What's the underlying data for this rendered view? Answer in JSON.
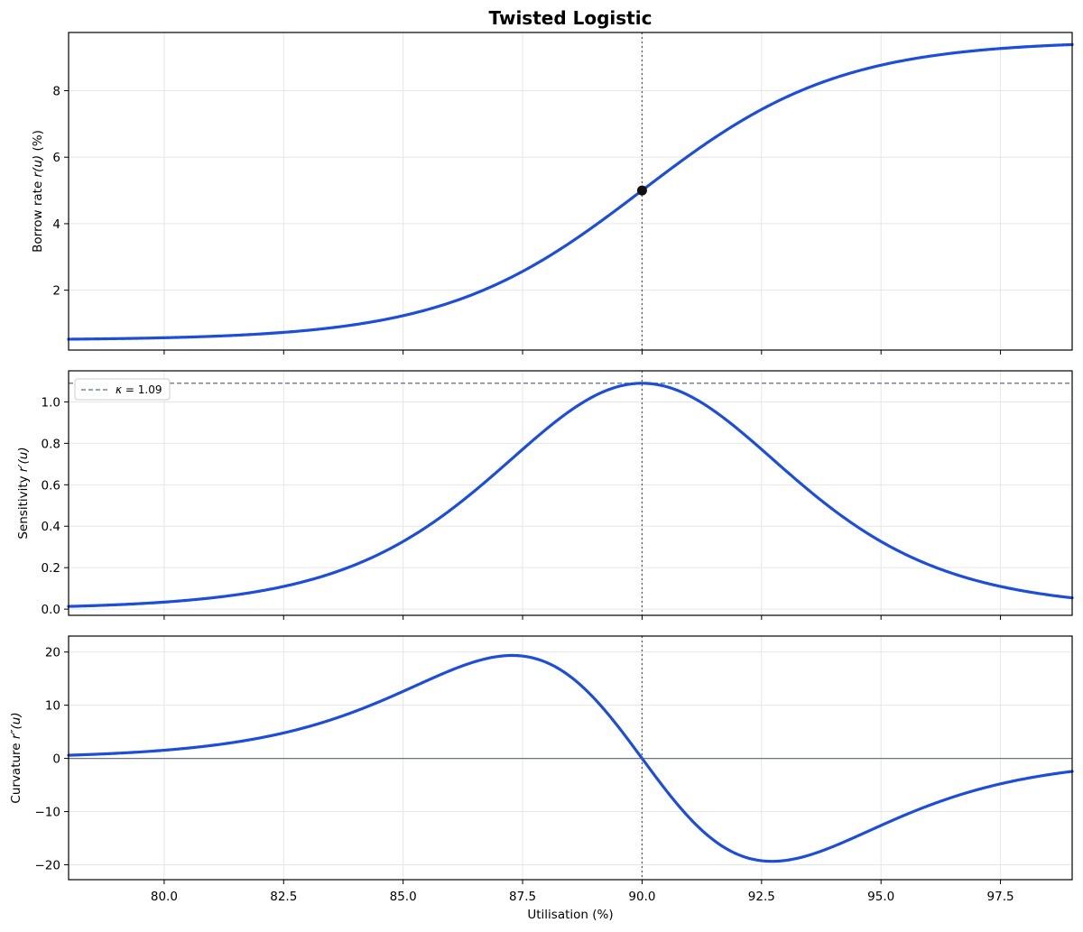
{
  "title": "Twisted Logistic",
  "chart_data": [
    {
      "type": "line",
      "name": "rate",
      "ylabel_parts": [
        "Borrow rate  ",
        "r(u)",
        "  (%)"
      ],
      "xlim": [
        78.0,
        99.0
      ],
      "ylim": [
        0.2,
        9.75
      ],
      "yticks": [
        2,
        4,
        6,
        8
      ],
      "ytick_labels": [
        "2",
        "4",
        "6",
        "8"
      ],
      "xticks": [
        80.0,
        82.5,
        85.0,
        87.5,
        90.0,
        92.5,
        95.0,
        97.5
      ],
      "grid": true,
      "curve": {
        "kind": "logistic_rate",
        "base": 0.5,
        "amplitude": 9.0,
        "midpoint": 90.0,
        "steepness": 0.4844
      },
      "marker": {
        "x": 90.0,
        "y": 5.0
      },
      "vline_x": 90.0
    },
    {
      "type": "line",
      "name": "sensitivity",
      "ylabel_parts": [
        "Sensitivity  ",
        "r′(u)"
      ],
      "xlim": [
        78.0,
        99.0
      ],
      "ylim": [
        -0.03,
        1.15
      ],
      "yticks": [
        0.0,
        0.2,
        0.4,
        0.6,
        0.8,
        1.0
      ],
      "ytick_labels": [
        "0.0",
        "0.2",
        "0.4",
        "0.6",
        "0.8",
        "1.0"
      ],
      "xticks": [
        80.0,
        82.5,
        85.0,
        87.5,
        90.0,
        92.5,
        95.0,
        97.5
      ],
      "grid": true,
      "curve": {
        "kind": "logistic_slope",
        "amplitude": 9.0,
        "midpoint": 90.0,
        "steepness": 0.4844
      },
      "hline": {
        "y": 1.09,
        "label_prefix": "κ",
        "label_value": " = 1.09"
      },
      "legend_position": "top-left",
      "vline_x": 90.0
    },
    {
      "type": "line",
      "name": "curvature",
      "ylabel_parts": [
        "Curvature  ",
        "r″(u)"
      ],
      "xlabel": "Utilisation (%)",
      "xlim": [
        78.0,
        99.0
      ],
      "ylim": [
        -22.8,
        23.0
      ],
      "yticks": [
        -20,
        -10,
        0,
        10,
        20
      ],
      "ytick_labels": [
        "−20",
        "−10",
        "0",
        "10",
        "20"
      ],
      "xticks": [
        80.0,
        82.5,
        85.0,
        87.5,
        90.0,
        92.5,
        95.0,
        97.5
      ],
      "xtick_labels": [
        "80.0",
        "82.5",
        "85.0",
        "87.5",
        "90.0",
        "92.5",
        "95.0",
        "97.5"
      ],
      "grid": true,
      "curve": {
        "kind": "logistic_curvature",
        "amplitude": 9.0,
        "midpoint": 90.0,
        "steepness": 0.4844
      },
      "zero_line": true,
      "vline_x": 90.0
    }
  ]
}
